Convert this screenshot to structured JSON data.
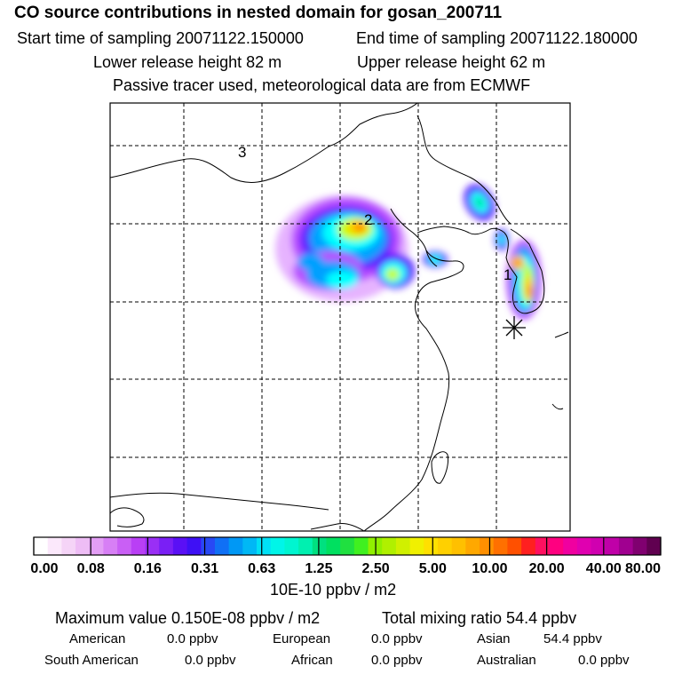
{
  "header": {
    "title": "CO  source contributions in nested domain for gosan_200711",
    "start_time": "Start time of sampling 20071122.150000",
    "end_time": "End time of sampling 20071122.180000",
    "lower_release": "Lower release height   82 m",
    "upper_release": "Upper release height   62 m",
    "tracer_note": "Passive tracer used, meteorological data are from ECMWF"
  },
  "map": {
    "labels": {
      "label_1": "1",
      "label_2": "2",
      "label_3": "3"
    },
    "plume_colors": [
      "#e6b3ff",
      "#b84dff",
      "#5a1aff",
      "#00a0ff",
      "#00ffff",
      "#00e080",
      "#c8ff00",
      "#ffd000",
      "#ff8000",
      "#ff2060"
    ]
  },
  "colorbar": {
    "unit": "10E-10 ppbv / m2",
    "tick_labels": [
      "0.00",
      "0.08",
      "0.16",
      "0.31",
      "0.63",
      "1.25",
      "2.50",
      "5.00",
      "10.00",
      "20.00",
      "40.00",
      "80.00"
    ],
    "colors": [
      "#ffffff",
      "#fbe8fb",
      "#f5d4f7",
      "#eebdf5",
      "#e39ef5",
      "#d77ff5",
      "#c95ff5",
      "#b93ff5",
      "#9a2ff5",
      "#7a1ff5",
      "#5a10f5",
      "#3e10f5",
      "#2848f5",
      "#1070f5",
      "#0098f5",
      "#00b8f5",
      "#00e0f5",
      "#00f5e8",
      "#00f5d0",
      "#00f0b0",
      "#00e080",
      "#00e060",
      "#20e040",
      "#40f020",
      "#90f000",
      "#b0f000",
      "#d0f000",
      "#f0f000",
      "#ffe000",
      "#ffd000",
      "#ffc000",
      "#ffa800",
      "#ff9000",
      "#ff7000",
      "#ff5000",
      "#ff2020",
      "#ff1060",
      "#ff0080",
      "#f000a0",
      "#e000b0",
      "#d000b0",
      "#c000a8",
      "#a00090",
      "#800070",
      "#600050"
    ]
  },
  "footer": {
    "max_value": "Maximum value  0.150E-08 ppbv / m2",
    "total_mixing": "Total mixing ratio       54.4 ppbv",
    "american_label": "American",
    "american_value": "0.0 ppbv",
    "european_label": "European",
    "european_value": "0.0 ppbv",
    "asian_label": "Asian",
    "asian_value": "54.4 ppbv",
    "south_american_label": "South American",
    "south_american_value": "0.0 ppbv",
    "african_label": "African",
    "african_value": "0.0 ppbv",
    "australian_label": "Australian",
    "australian_value": "0.0 ppbv"
  }
}
